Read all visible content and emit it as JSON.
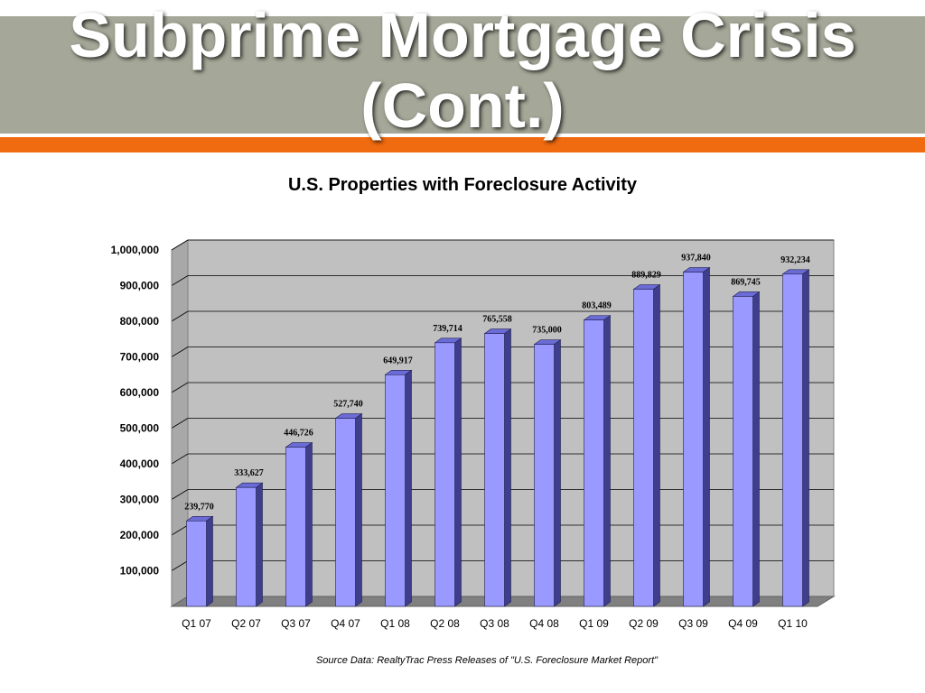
{
  "slide": {
    "title_line1": "Subprime Mortgage Crisis",
    "title_line2": "(Cont.)",
    "source_note": "Source Data: RealtyTrac Press Releases of \"U.S. Foreclosure Market Report\""
  },
  "colors": {
    "header_band": "#a5a898",
    "accent_band": "#f06a0f",
    "bar_front": "#9999ff",
    "bar_top": "#6b6bd6",
    "bar_side": "#3e3e8c",
    "plot_wall": "#c0c0c0",
    "plot_floor": "#808080"
  },
  "chart_data": {
    "type": "bar",
    "title": "U.S. Properties with Foreclosure Activity",
    "categories": [
      "Q1 07",
      "Q2 07",
      "Q3 07",
      "Q4 07",
      "Q1 08",
      "Q2 08",
      "Q3 08",
      "Q4 08",
      "Q1 09",
      "Q2 09",
      "Q3 09",
      "Q4 09",
      "Q1 10"
    ],
    "values": [
      239770,
      333627,
      446726,
      527740,
      649917,
      739714,
      765558,
      735000,
      803489,
      889829,
      937840,
      869745,
      932234
    ],
    "data_labels": [
      "239,770",
      "333,627",
      "446,726",
      "527,740",
      "649,917",
      "739,714",
      "765,558",
      "735,000",
      "803,489",
      "889,829",
      "937,840",
      "869,745",
      "932,234"
    ],
    "y_ticks": [
      100000,
      200000,
      300000,
      400000,
      500000,
      600000,
      700000,
      800000,
      900000,
      1000000
    ],
    "y_tick_labels": [
      "100,000",
      "200,000",
      "300,000",
      "400,000",
      "500,000",
      "600,000",
      "700,000",
      "800,000",
      "900,000",
      "1,000,000"
    ],
    "ylim": [
      0,
      1000000
    ],
    "grid": true,
    "legend": false,
    "style": "3d-column"
  }
}
